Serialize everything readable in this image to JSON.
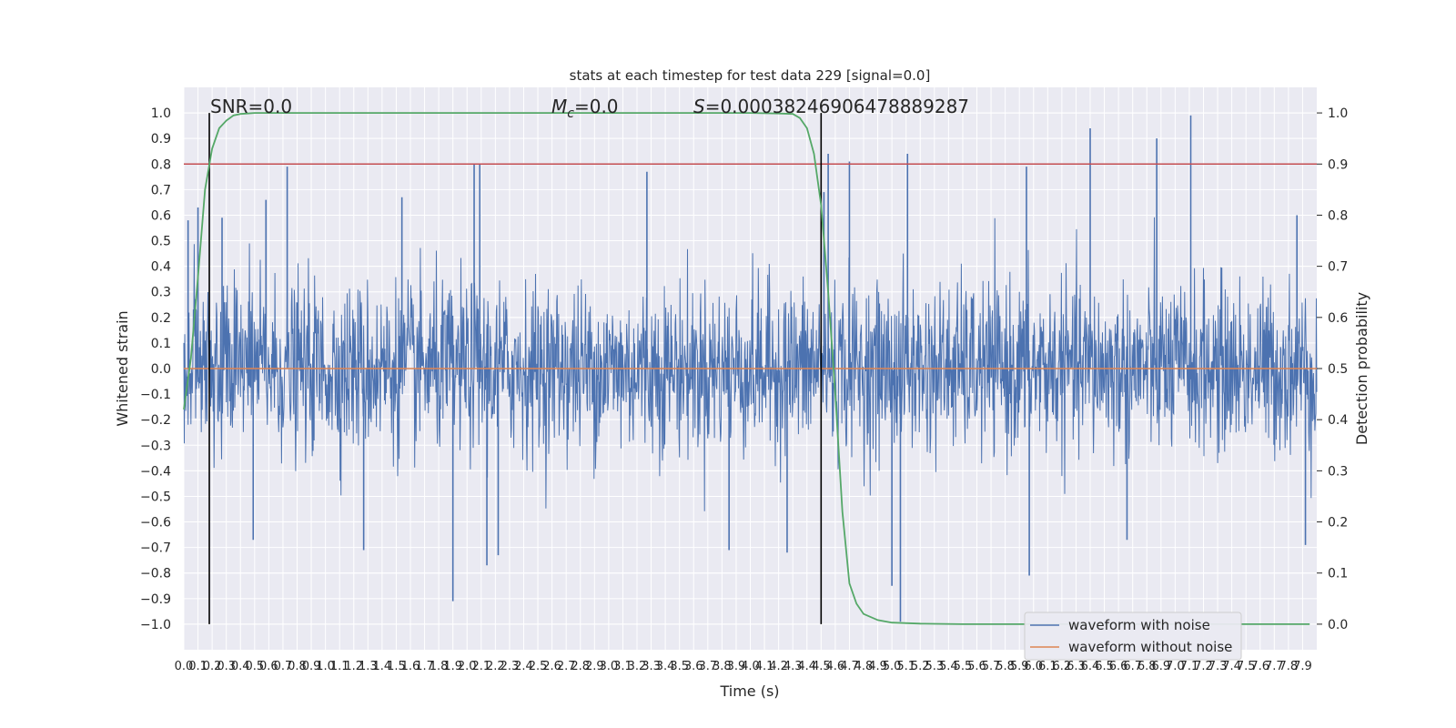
{
  "chart_data": {
    "type": "line",
    "title": "stats at each timestep for test data 229 [signal=0.0]",
    "xlabel": "Time (s)",
    "ylabel": "Whitened strain",
    "y2label": "Detection probability",
    "annotations": {
      "snr": "SNR=0.0",
      "mc_symbol": "M",
      "mc_sub": "c",
      "mc_value": "=0.0",
      "s_symbol": "S",
      "s_value": "=0.00038246906478889287"
    },
    "xlim": [
      0.0,
      8.0
    ],
    "ylim": [
      -1.1,
      1.1
    ],
    "y2lim": [
      -0.05,
      1.05
    ],
    "x_ticks": [
      0.0,
      0.1,
      0.2,
      0.3,
      0.4,
      0.5,
      0.6,
      0.7,
      0.8,
      0.9,
      1.0,
      1.1,
      1.2,
      1.3,
      1.4,
      1.5,
      1.6,
      1.7,
      1.8,
      1.9,
      2.0,
      2.1,
      2.2,
      2.3,
      2.4,
      2.5,
      2.6,
      2.7,
      2.8,
      2.9,
      3.0,
      3.1,
      3.2,
      3.3,
      3.4,
      3.5,
      3.6,
      3.7,
      3.8,
      3.9,
      4.0,
      4.1,
      4.2,
      4.3,
      4.4,
      4.5,
      4.6,
      4.7,
      4.8,
      4.9,
      5.0,
      5.1,
      5.2,
      5.3,
      5.4,
      5.5,
      5.6,
      5.7,
      5.8,
      5.9,
      6.0,
      6.1,
      6.2,
      6.3,
      6.4,
      6.5,
      6.6,
      6.7,
      6.8,
      6.9,
      7.0,
      7.1,
      7.2,
      7.3,
      7.4,
      7.5,
      7.6,
      7.7,
      7.8,
      7.9
    ],
    "y_ticks": [
      1.0,
      0.9,
      0.8,
      0.7,
      0.6,
      0.5,
      0.4,
      0.3,
      0.2,
      0.1,
      0.0,
      -0.1,
      -0.2,
      -0.3,
      -0.4,
      -0.5,
      -0.6,
      -0.7,
      -0.8,
      -0.9,
      -1.0
    ],
    "y2_ticks": [
      1.0,
      0.9,
      0.8,
      0.7,
      0.6,
      0.5,
      0.4,
      0.3,
      0.2,
      0.1,
      0.0
    ],
    "grid": true,
    "legend_position": "bottom-right",
    "series": [
      {
        "name": "waveform with noise",
        "color": "#4c72b0",
        "style": "dense noise",
        "typical_amplitude": 0.3,
        "peaks": [
          {
            "x": 0.03,
            "y": 0.58
          },
          {
            "x": 0.1,
            "y": 0.63
          },
          {
            "x": 0.27,
            "y": 0.59
          },
          {
            "x": 0.58,
            "y": 0.66
          },
          {
            "x": 0.73,
            "y": 0.79
          },
          {
            "x": 1.54,
            "y": 0.67
          },
          {
            "x": 2.05,
            "y": 0.8
          },
          {
            "x": 2.09,
            "y": 0.8
          },
          {
            "x": 3.27,
            "y": 0.77
          },
          {
            "x": 4.52,
            "y": 0.69
          },
          {
            "x": 4.55,
            "y": 0.84
          },
          {
            "x": 4.7,
            "y": 0.81
          },
          {
            "x": 5.11,
            "y": 0.84
          },
          {
            "x": 5.95,
            "y": 0.79
          },
          {
            "x": 6.4,
            "y": 0.94
          },
          {
            "x": 6.87,
            "y": 0.9
          },
          {
            "x": 7.11,
            "y": 0.99
          },
          {
            "x": 7.86,
            "y": 0.6
          },
          {
            "x": 1.9,
            "y": -0.91
          },
          {
            "x": 0.49,
            "y": -0.67
          },
          {
            "x": 1.27,
            "y": -0.71
          },
          {
            "x": 2.14,
            "y": -0.77
          },
          {
            "x": 2.22,
            "y": -0.73
          },
          {
            "x": 3.85,
            "y": -0.71
          },
          {
            "x": 4.26,
            "y": -0.72
          },
          {
            "x": 5.0,
            "y": -0.85
          },
          {
            "x": 5.06,
            "y": -0.99
          },
          {
            "x": 5.97,
            "y": -0.81
          },
          {
            "x": 6.66,
            "y": -0.67
          },
          {
            "x": 7.92,
            "y": -0.69
          }
        ]
      },
      {
        "name": "waveform without noise",
        "color": "#dd8452",
        "x": [
          0.0,
          8.0
        ],
        "y": [
          0.0,
          0.0
        ]
      },
      {
        "name": "detection probability",
        "color": "#55a868",
        "axis": "right",
        "x": [
          0.0,
          0.05,
          0.1,
          0.15,
          0.2,
          0.25,
          0.3,
          0.35,
          0.4,
          0.45,
          0.5,
          0.55,
          0.6,
          0.7,
          0.8,
          1.0,
          2.0,
          3.0,
          4.0,
          4.2,
          4.3,
          4.35,
          4.4,
          4.45,
          4.5,
          4.55,
          4.6,
          4.65,
          4.7,
          4.75,
          4.8,
          4.9,
          5.0,
          5.2,
          5.5,
          6.0,
          7.0,
          7.95
        ],
        "y": [
          0.42,
          0.52,
          0.68,
          0.85,
          0.93,
          0.97,
          0.985,
          0.995,
          0.998,
          0.999,
          1.0,
          1.0,
          1.0,
          1.0,
          1.0,
          1.0,
          1.0,
          1.0,
          1.0,
          0.999,
          0.998,
          0.99,
          0.97,
          0.92,
          0.82,
          0.65,
          0.45,
          0.22,
          0.08,
          0.04,
          0.02,
          0.008,
          0.003,
          0.001,
          0.0,
          0.0,
          0.0,
          0.0
        ]
      }
    ],
    "threshold": {
      "y2": 0.9,
      "color": "#c44e52"
    },
    "vlines": [
      {
        "x": 0.18,
        "y_top": 1.0,
        "y_bottom": -1.0
      },
      {
        "x": 4.5,
        "y_top": 1.0,
        "y_bottom": -1.0
      }
    ]
  }
}
